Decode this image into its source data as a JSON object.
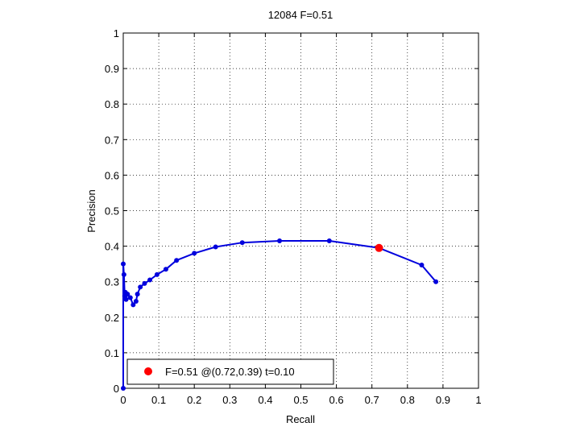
{
  "chart_data": {
    "type": "line",
    "title": "12084 F=0.51",
    "xlabel": "Recall",
    "ylabel": "Precision",
    "xlim": [
      0,
      1
    ],
    "ylim": [
      0,
      1
    ],
    "xticks": [
      "0",
      "0.1",
      "0.2",
      "0.3",
      "0.4",
      "0.5",
      "0.6",
      "0.7",
      "0.8",
      "0.9",
      "1"
    ],
    "yticks": [
      "0",
      "0.1",
      "0.2",
      "0.3",
      "0.4",
      "0.5",
      "0.6",
      "0.7",
      "0.8",
      "0.9",
      "1"
    ],
    "grid": true,
    "legend_position": "bottom-left",
    "series": [
      {
        "color": "#0000dd",
        "points": [
          [
            0.0,
            0.0
          ],
          [
            0.0,
            0.35
          ],
          [
            0.002,
            0.32
          ],
          [
            0.004,
            0.26
          ],
          [
            0.006,
            0.27
          ],
          [
            0.008,
            0.25
          ],
          [
            0.012,
            0.265
          ],
          [
            0.02,
            0.255
          ],
          [
            0.028,
            0.235
          ],
          [
            0.036,
            0.245
          ],
          [
            0.04,
            0.265
          ],
          [
            0.048,
            0.285
          ],
          [
            0.06,
            0.295
          ],
          [
            0.075,
            0.305
          ],
          [
            0.095,
            0.32
          ],
          [
            0.12,
            0.335
          ],
          [
            0.15,
            0.36
          ],
          [
            0.2,
            0.38
          ],
          [
            0.26,
            0.398
          ],
          [
            0.335,
            0.41
          ],
          [
            0.44,
            0.415
          ],
          [
            0.58,
            0.415
          ],
          [
            0.72,
            0.395
          ],
          [
            0.84,
            0.347
          ],
          [
            0.88,
            0.3
          ]
        ]
      }
    ],
    "highlight": {
      "x": 0.72,
      "y": 0.395,
      "color": "#ff0000"
    },
    "legend": {
      "label": "F=0.51 @(0.72,0.39) t=0.10"
    }
  }
}
